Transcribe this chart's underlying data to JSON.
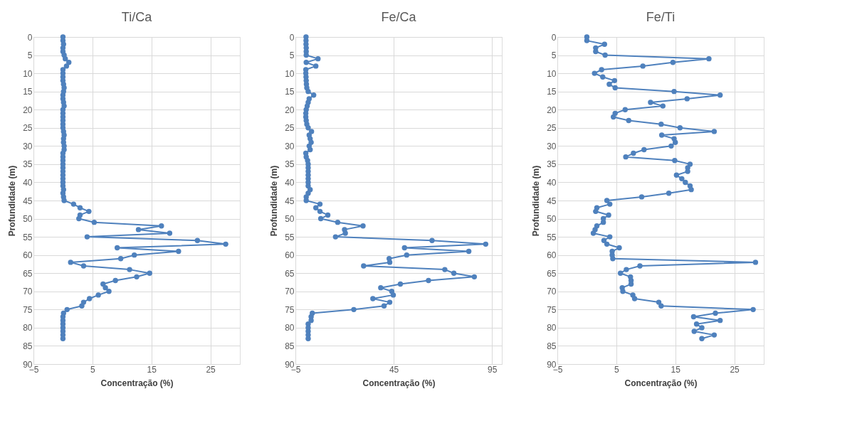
{
  "chart_data": [
    {
      "type": "line",
      "title": "Ti/Ca",
      "xlabel": "Concentração (%)",
      "ylabel": "Profundidade (m)",
      "xlim": [
        -5,
        30
      ],
      "xticks": [
        -5,
        5,
        15,
        25
      ],
      "ylim": [
        90,
        0
      ],
      "yticks": [
        0,
        5,
        10,
        15,
        20,
        25,
        30,
        35,
        40,
        45,
        50,
        55,
        60,
        65,
        70,
        75,
        80,
        85,
        90
      ],
      "grid": true,
      "marker": "circle",
      "line_style": "solid",
      "x": [
        0,
        0,
        0.1,
        0,
        0,
        0.2,
        0.4,
        1.0,
        0.6,
        0,
        0,
        0,
        0,
        0.1,
        0.2,
        0.1,
        0,
        0,
        0.1,
        0.2,
        0,
        0,
        0,
        0,
        0,
        0,
        0.1,
        0.2,
        0.1,
        0.1,
        0.2,
        0.2,
        0,
        0,
        0,
        0,
        0,
        0,
        0,
        0,
        0,
        0,
        0.1,
        0,
        0.1,
        0.2,
        1.8,
        2.9,
        4.4,
        2.9,
        2.7,
        5.3,
        16.7,
        12.8,
        18.1,
        4.1,
        22.8,
        27.6,
        9.2,
        19.6,
        12.1,
        9.8,
        1.3,
        3.5,
        11.3,
        14.7,
        12.5,
        8.9,
        6.8,
        7.2,
        7.8,
        6.0,
        4.5,
        3.5,
        3.2,
        0.7,
        0.1,
        0,
        0,
        0,
        0,
        0,
        0,
        0
      ],
      "series": [
        {
          "color": "#4f81bd",
          "values": [
            0,
            1,
            2,
            3,
            4,
            5,
            6,
            7,
            8,
            9,
            10,
            11,
            12,
            13,
            14,
            15,
            16,
            17,
            18,
            19,
            20,
            21,
            22,
            23,
            24,
            25,
            26,
            27,
            28,
            29,
            30,
            31,
            32,
            33,
            34,
            35,
            36,
            37,
            38,
            39,
            40,
            41,
            42,
            43,
            44,
            45,
            46,
            47,
            48,
            49,
            50,
            51,
            52,
            53,
            54,
            55,
            56,
            57,
            58,
            59,
            60,
            61,
            62,
            63,
            64,
            65,
            66,
            67,
            68,
            69,
            70,
            71,
            72,
            73,
            74,
            75,
            76,
            77,
            78,
            79,
            80,
            81,
            82,
            83
          ]
        }
      ]
    },
    {
      "type": "line",
      "title": "Fe/Ca",
      "xlabel": "Concentração (%)",
      "ylabel": "Profundidade (m)",
      "xlim": [
        -5,
        100
      ],
      "xticks": [
        -5,
        45,
        95
      ],
      "ylim": [
        90,
        0
      ],
      "yticks": [
        0,
        5,
        10,
        15,
        20,
        25,
        30,
        35,
        40,
        45,
        50,
        55,
        60,
        65,
        70,
        75,
        80,
        85,
        90
      ],
      "grid": true,
      "marker": "circle",
      "line_style": "solid",
      "x": [
        0.4,
        0.4,
        0.4,
        0.5,
        0.5,
        0.5,
        6.5,
        0.5,
        5.4,
        0.3,
        0.3,
        0.4,
        0.5,
        0.6,
        0.8,
        1.5,
        4.3,
        2.0,
        1.5,
        1.0,
        0.5,
        0.3,
        0.3,
        0.5,
        0.8,
        1.5,
        3.2,
        2.0,
        2.5,
        3.0,
        2.0,
        2.5,
        0.3,
        0.5,
        1.2,
        1.5,
        1.5,
        1.5,
        1.5,
        1.5,
        1.5,
        1.5,
        2.5,
        1.5,
        0.5,
        0.5,
        7.5,
        5.4,
        7.5,
        11.5,
        7.9,
        16.5,
        29.4,
        20.0,
        20.4,
        15.4,
        64.5,
        91.8,
        50.5,
        83.2,
        51.6,
        42.7,
        43.0,
        29.7,
        71.0,
        75.6,
        86.0,
        62.7,
        48.4,
        38.4,
        44.0,
        44.8,
        34.4,
        43.0,
        40.1,
        24.7,
        3.6,
        3.0,
        3.0,
        1.5,
        1.5,
        1.5,
        1.5,
        1.5
      ],
      "series": [
        {
          "color": "#4f81bd",
          "values": [
            0,
            1,
            2,
            3,
            4,
            5,
            6,
            7,
            8,
            9,
            10,
            11,
            12,
            13,
            14,
            15,
            16,
            17,
            18,
            19,
            20,
            21,
            22,
            23,
            24,
            25,
            26,
            27,
            28,
            29,
            30,
            31,
            32,
            33,
            34,
            35,
            36,
            37,
            38,
            39,
            40,
            41,
            42,
            43,
            44,
            45,
            46,
            47,
            48,
            49,
            50,
            51,
            52,
            53,
            54,
            55,
            56,
            57,
            58,
            59,
            60,
            61,
            62,
            63,
            64,
            65,
            66,
            67,
            68,
            69,
            70,
            71,
            72,
            73,
            74,
            75,
            76,
            77,
            78,
            79,
            80,
            81,
            82,
            83
          ]
        }
      ]
    },
    {
      "type": "line",
      "title": "Fe/Ti",
      "xlabel": "Concentração (%)",
      "ylabel": "Profundidade (m)",
      "xlim": [
        -5,
        30
      ],
      "xticks": [
        -5,
        5,
        15,
        25
      ],
      "ylim": [
        90,
        0
      ],
      "yticks": [
        0,
        5,
        10,
        15,
        20,
        25,
        30,
        35,
        40,
        45,
        50,
        55,
        60,
        65,
        70,
        75,
        80,
        85,
        90
      ],
      "grid": true,
      "marker": "circle",
      "line_style": "solid",
      "x": [
        0,
        0,
        3.0,
        1.5,
        1.5,
        3.1,
        20.7,
        14.6,
        9.5,
        2.5,
        1.3,
        2.7,
        4.7,
        3.8,
        4.8,
        14.8,
        22.6,
        17.0,
        10.8,
        12.9,
        6.5,
        4.8,
        4.5,
        7.1,
        12.6,
        15.8,
        21.6,
        12.7,
        14.8,
        15.0,
        14.3,
        9.7,
        7.9,
        6.6,
        14.9,
        17.5,
        17.1,
        17.1,
        15.2,
        16.1,
        16.7,
        17.5,
        17.7,
        13.9,
        9.3,
        3.4,
        3.9,
        1.7,
        1.5,
        3.7,
        2.8,
        2.8,
        1.7,
        1.4,
        1.1,
        3.9,
        2.9,
        3.4,
        5.5,
        4.3,
        4.3,
        4.4,
        28.6,
        9.0,
        6.7,
        5.7,
        7.4,
        7.5,
        7.5,
        6.0,
        6.1,
        7.8,
        8.1,
        12.2,
        12.6,
        28.2,
        21.8,
        18.1,
        22.6,
        18.6,
        19.5,
        18.2,
        21.6,
        19.5
      ],
      "series": [
        {
          "color": "#4f81bd",
          "values": [
            0,
            1,
            2,
            3,
            4,
            5,
            6,
            7,
            8,
            9,
            10,
            11,
            12,
            13,
            14,
            15,
            16,
            17,
            18,
            19,
            20,
            21,
            22,
            23,
            24,
            25,
            26,
            27,
            28,
            29,
            30,
            31,
            32,
            33,
            34,
            35,
            36,
            37,
            38,
            39,
            40,
            41,
            42,
            43,
            44,
            45,
            46,
            47,
            48,
            49,
            50,
            51,
            52,
            53,
            54,
            55,
            56,
            57,
            58,
            59,
            60,
            61,
            62,
            63,
            64,
            65,
            66,
            67,
            68,
            69,
            70,
            71,
            72,
            73,
            74,
            75,
            76,
            77,
            78,
            79,
            80,
            81,
            82,
            83
          ]
        }
      ]
    }
  ]
}
